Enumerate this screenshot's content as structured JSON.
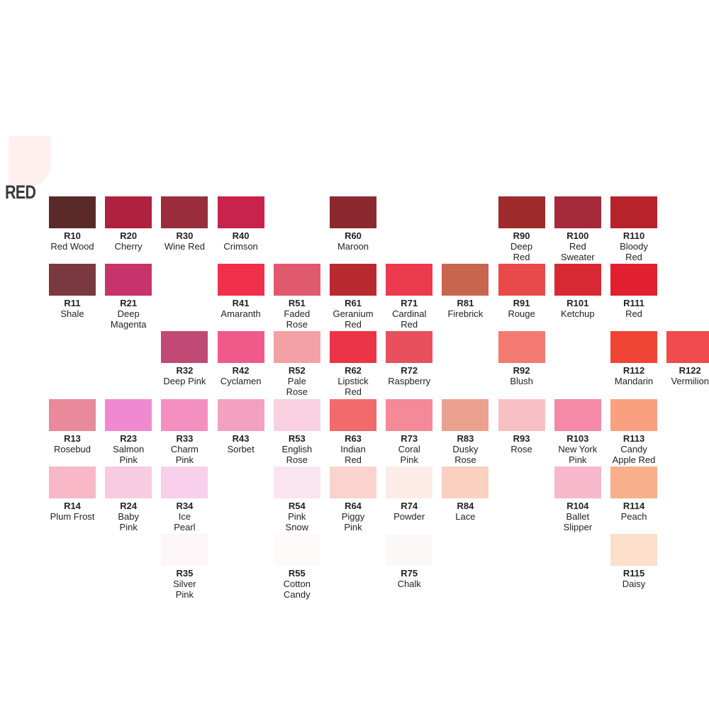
{
  "header": {
    "title": "RED"
  },
  "grid": {
    "rows": [
      [
        {
          "code": "R10",
          "name": "Red Wood",
          "color": "#5a2a28"
        },
        {
          "code": "R20",
          "name": "Cherry",
          "color": "#b0203f"
        },
        {
          "code": "R30",
          "name": "Wine Red",
          "color": "#9a2d3c"
        },
        {
          "code": "R40",
          "name": "Crimson",
          "color": "#c8234a"
        },
        null,
        {
          "code": "R60",
          "name": "Maroon",
          "color": "#8b2a2e"
        },
        null,
        null,
        {
          "code": "R90",
          "name": "Deep\nRed",
          "color": "#9e2a2b"
        },
        {
          "code": "R100",
          "name": "Red\nSweater",
          "color": "#a52a3a"
        },
        {
          "code": "R110",
          "name": "Bloody\nRed",
          "color": "#b8222a"
        },
        null
      ],
      [
        {
          "code": "R11",
          "name": "Shale",
          "color": "#7a3840"
        },
        {
          "code": "R21",
          "name": "Deep\nMagenta",
          "color": "#c8336c"
        },
        null,
        {
          "code": "R41",
          "name": "Amaranth",
          "color": "#f0304a"
        },
        {
          "code": "R51",
          "name": "Faded\nRose",
          "color": "#e05a6e"
        },
        {
          "code": "R61",
          "name": "Geranium\nRed",
          "color": "#b82a30"
        },
        {
          "code": "R71",
          "name": "Cardinal\nRed",
          "color": "#ec3a4e"
        },
        {
          "code": "R81",
          "name": "Firebrick",
          "color": "#c8654e"
        },
        {
          "code": "R91",
          "name": "Rouge",
          "color": "#e84a4a"
        },
        {
          "code": "R101",
          "name": "Ketchup",
          "color": "#d82834"
        },
        {
          "code": "R111",
          "name": "Red",
          "color": "#e02030"
        },
        null
      ],
      [
        null,
        null,
        {
          "code": "R32",
          "name": "Deep Pink",
          "color": "#c04a74"
        },
        {
          "code": "R42",
          "name": "Cyclamen",
          "color": "#f05a8a"
        },
        {
          "code": "R52",
          "name": "Pale\nRose",
          "color": "#f4a0a4"
        },
        {
          "code": "R62",
          "name": "Lipstick\nRed",
          "color": "#ec3448"
        },
        {
          "code": "R72",
          "name": "Raspberry",
          "color": "#e8505e"
        },
        null,
        {
          "code": "R92",
          "name": "Blush",
          "color": "#f27a70"
        },
        null,
        {
          "code": "R112",
          "name": "Mandarin",
          "color": "#f04434"
        },
        {
          "code": "R122",
          "name": "Vermilion",
          "color": "#f04a4c"
        }
      ],
      [
        {
          "code": "R13",
          "name": "Rosebud",
          "color": "#e88a9a"
        },
        {
          "code": "R23",
          "name": "Salmon\nPink",
          "color": "#f08ad0"
        },
        {
          "code": "R33",
          "name": "Charm\nPink",
          "color": "#f490c0"
        },
        {
          "code": "R43",
          "name": "Sorbet",
          "color": "#f4a0c0"
        },
        {
          "code": "R53",
          "name": "English\nRose",
          "color": "#f8d0e0"
        },
        {
          "code": "R63",
          "name": "Indian\nRed",
          "color": "#f26a6c"
        },
        {
          "code": "R73",
          "name": "Coral\nPink",
          "color": "#f48a98"
        },
        {
          "code": "R83",
          "name": "Dusky\nRose",
          "color": "#eca090"
        },
        {
          "code": "R93",
          "name": "Rose",
          "color": "#f8c0c4"
        },
        {
          "code": "R103",
          "name": "New York\nPink",
          "color": "#f48aa8"
        },
        {
          "code": "R113",
          "name": "Candy\nApple Red",
          "color": "#f8a080"
        },
        null
      ],
      [
        {
          "code": "R14",
          "name": "Plum Frost",
          "color": "#f8b8c8"
        },
        {
          "code": "R24",
          "name": "Baby\nPink",
          "color": "#f8cce0"
        },
        {
          "code": "R34",
          "name": "Ice\nPearl",
          "color": "#f8d0ec"
        },
        null,
        {
          "code": "R54",
          "name": "Pink\nSnow",
          "color": "#fae4f0"
        },
        {
          "code": "R64",
          "name": "Piggy\nPink",
          "color": "#fad4cc"
        },
        {
          "code": "R74",
          "name": "Powder",
          "color": "#fcebe6"
        },
        {
          "code": "R84",
          "name": "Lace",
          "color": "#fad0c0"
        },
        null,
        {
          "code": "R104",
          "name": "Ballet\nSlipper",
          "color": "#f8b8cc"
        },
        {
          "code": "R114",
          "name": "Peach",
          "color": "#f8b08c"
        },
        null
      ],
      [
        null,
        null,
        {
          "code": "R35",
          "name": "Silver\nPink",
          "color": "#fcf6f8"
        },
        null,
        {
          "code": "R55",
          "name": "Cotton\nCandy",
          "color": "#fefafa"
        },
        null,
        {
          "code": "R75",
          "name": "Chalk",
          "color": "#fcf8f8"
        },
        null,
        null,
        null,
        {
          "code": "R115",
          "name": "Daisy",
          "color": "#fde0cc"
        },
        null
      ]
    ]
  }
}
